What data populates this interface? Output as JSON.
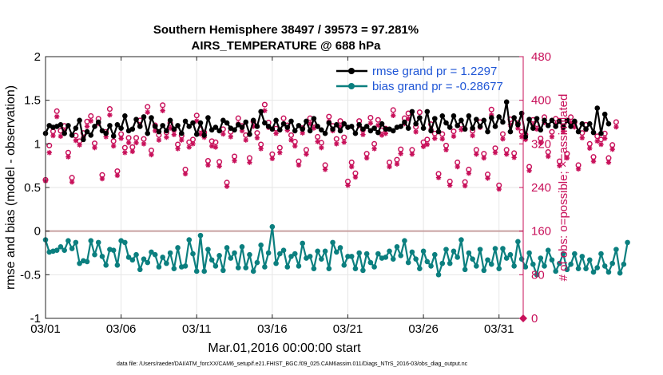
{
  "chart_data": {
    "type": "line",
    "title": [
      "Southern Hemisphere 38497 / 39573 = 97.281%",
      "AIRS_TEMPERATURE @ 688 hPa"
    ],
    "xlabel": "Mar.01,2016 00:00:00 start",
    "ylabel": "rmse and bias (model - observation)",
    "ylabel_right": "# of obs: o=possible; ×=assimilated",
    "footer": "data file: /Users/raeder/DAI/ATM_forcXX/CAM6_setup/f.e21.FHIST_BGC.f09_025.CAM6assim.011/Diags_NTrS_2016-03/obs_diag_output.nc",
    "xlim": [
      0,
      31.6
    ],
    "ylim": [
      -1,
      2
    ],
    "ylim_right": [
      0,
      480
    ],
    "x_ticks": [
      0,
      5,
      10,
      15,
      20,
      25,
      30
    ],
    "x_tick_labels": [
      "03/01",
      "03/06",
      "03/11",
      "03/16",
      "03/21",
      "03/26",
      "03/31"
    ],
    "y_ticks": [
      -1,
      -0.5,
      0,
      0.5,
      1,
      1.5,
      2
    ],
    "y_tick_labels": [
      "-1",
      "-0.5",
      "0",
      "0.5",
      "1",
      "1.5",
      "2"
    ],
    "y_ticks_right": [
      0,
      80,
      160,
      240,
      320,
      400,
      480
    ],
    "y_tick_labels_right": [
      "0",
      "80",
      "160",
      "240",
      "320",
      "400",
      "480"
    ],
    "legend": [
      "rmse grand pr = 1.2297",
      "bias grand pr = -0.28677"
    ],
    "legend_position": "top-right",
    "colors": {
      "rmse": "#000000",
      "bias": "#0b7f7f",
      "obs": "#c8105a",
      "zero_line": "#c8a0a0",
      "grid": "#e6e6e6"
    },
    "x_step_days": 0.25,
    "series": [
      {
        "name": "rmse",
        "axis": "left",
        "values": [
          1.12,
          1.21,
          1.19,
          1.2,
          1.22,
          1.12,
          1.21,
          1.1,
          1.18,
          1.27,
          1.05,
          1.14,
          1.1,
          1.2,
          1.25,
          1.15,
          1.12,
          1.21,
          1.09,
          1.22,
          1.18,
          1.32,
          1.15,
          1.17,
          1.28,
          1.2,
          1.31,
          1.12,
          1.3,
          1.2,
          1.14,
          1.21,
          1.15,
          1.27,
          1.17,
          1.21,
          1.12,
          1.26,
          1.2,
          1.24,
          1.11,
          1.24,
          1.1,
          1.3,
          1.16,
          1.19,
          1.15,
          1.27,
          1.24,
          1.18,
          1.16,
          1.22,
          1.19,
          1.25,
          1.11,
          1.27,
          1.2,
          1.37,
          1.24,
          1.2,
          1.17,
          1.27,
          1.16,
          1.23,
          1.19,
          1.26,
          1.15,
          1.21,
          1.17,
          1.26,
          1.15,
          1.29,
          1.2,
          1.16,
          1.12,
          1.24,
          1.17,
          1.22,
          1.15,
          1.23,
          1.19,
          1.2,
          1.12,
          1.22,
          1.17,
          1.2,
          1.15,
          1.18,
          1.13,
          1.23,
          1.17,
          1.17,
          1.15,
          1.19,
          1.2,
          1.25,
          1.18,
          1.37,
          1.23,
          1.3,
          1.18,
          1.37,
          1.15,
          1.29,
          1.14,
          1.32,
          1.24,
          1.19,
          1.32,
          1.21,
          1.27,
          1.17,
          1.32,
          1.18,
          1.28,
          1.2,
          1.27,
          1.14,
          1.3,
          1.2,
          1.31,
          1.25,
          1.48,
          1.14,
          1.3,
          1.22,
          1.35,
          1.08,
          1.28,
          1.18,
          1.29,
          1.16,
          1.27,
          1.21,
          1.27,
          1.2,
          1.26,
          1.19,
          1.27,
          1.2,
          1.26,
          1.14,
          1.23,
          1.17,
          1.23,
          1.13,
          1.41,
          1.12,
          1.34,
          1.23
        ]
      },
      {
        "name": "bias",
        "axis": "left",
        "values": [
          -0.1,
          -0.24,
          -0.23,
          -0.22,
          -0.18,
          -0.22,
          -0.11,
          -0.2,
          -0.13,
          -0.37,
          -0.34,
          -0.35,
          -0.11,
          -0.27,
          -0.13,
          -0.29,
          -0.39,
          -0.21,
          -0.22,
          -0.39,
          -0.11,
          -0.13,
          -0.3,
          -0.33,
          -0.27,
          -0.44,
          -0.32,
          -0.36,
          -0.24,
          -0.27,
          -0.41,
          -0.3,
          -0.37,
          -0.25,
          -0.43,
          -0.19,
          -0.41,
          -0.4,
          -0.1,
          -0.26,
          -0.46,
          -0.05,
          -0.46,
          -0.21,
          -0.33,
          -0.4,
          -0.28,
          -0.45,
          -0.19,
          -0.31,
          -0.25,
          -0.42,
          -0.18,
          -0.42,
          -0.27,
          -0.46,
          -0.36,
          -0.16,
          -0.41,
          -0.25,
          0.05,
          -0.37,
          -0.26,
          -0.22,
          -0.41,
          -0.29,
          -0.26,
          -0.4,
          -0.14,
          -0.31,
          -0.29,
          -0.43,
          -0.23,
          -0.32,
          -0.23,
          -0.43,
          -0.13,
          -0.24,
          -0.19,
          -0.39,
          -0.29,
          -0.29,
          -0.43,
          -0.25,
          -0.45,
          -0.26,
          -0.36,
          -0.41,
          -0.26,
          -0.31,
          -0.3,
          -0.23,
          -0.32,
          -0.18,
          -0.28,
          -0.11,
          -0.36,
          -0.24,
          -0.32,
          -0.43,
          -0.23,
          -0.35,
          -0.4,
          -0.27,
          -0.5,
          -0.37,
          -0.21,
          -0.37,
          -0.23,
          -0.3,
          -0.1,
          -0.44,
          -0.25,
          -0.32,
          -0.4,
          -0.21,
          -0.45,
          -0.33,
          -0.38,
          -0.2,
          -0.43,
          -0.2,
          -0.31,
          -0.27,
          -0.4,
          -0.12,
          -0.32,
          -0.41,
          -0.25,
          -0.38,
          -0.5,
          -0.31,
          -0.4,
          -0.22,
          -0.33,
          -0.46,
          -0.37,
          -0.26,
          -0.44,
          -0.38,
          -0.26,
          -0.43,
          -0.29,
          -0.43,
          -0.33,
          -0.47,
          -0.42,
          -0.26,
          -0.4,
          -0.47,
          -0.37,
          -0.21,
          -0.48,
          -0.38,
          -0.13
        ]
      },
      {
        "name": "obs_possible",
        "axis": "right",
        "values": [
          254,
          317,
          343,
          380,
          344,
          353,
          304,
          258,
          335,
          325,
          340,
          361,
          371,
          321,
          366,
          263,
          342,
          384,
          325,
          270,
          338,
          313,
          331,
          314,
          331,
          363,
          329,
          388,
          308,
          354,
          336,
          391,
          341,
          358,
          346,
          319,
          335,
          273,
          323,
          328,
          372,
          347,
          341,
          289,
          325,
          323,
          287,
          347,
          249,
          342,
          297,
          367,
          353,
          336,
          294,
          361,
          340,
          319,
          392,
          359,
          301,
          348,
          313,
          367,
          354,
          336,
          324,
          288,
          349,
          309,
          367,
          358,
          333,
          322,
          281,
          370,
          353,
          329,
          362,
          332,
          251,
          286,
          266,
          362,
          346,
          302,
          368,
          320,
          364,
          345,
          348,
          286,
          382,
          291,
          310,
          367,
          376,
          309,
          351,
          378,
          323,
          328,
          356,
          339,
          265,
          338,
          317,
          251,
          343,
          286,
          355,
          250,
          273,
          344,
          309,
          360,
          302,
          264,
          383,
          312,
          244,
          338,
          309,
          365,
          303,
          358,
          342,
          337,
          278,
          364,
          356,
          330,
          369,
          305,
          342,
          366,
          288,
          352,
          302,
          369,
          360,
          281,
          340,
          355,
          320,
          296,
          334,
          328,
          339,
          294,
          318,
          360
        ]
      },
      {
        "name": "obs_assimilated",
        "axis": "right",
        "values": [
          252,
          304,
          335,
          370,
          334,
          344,
          296,
          250,
          326,
          318,
          332,
          352,
          362,
          313,
          357,
          256,
          333,
          373,
          316,
          262,
          330,
          304,
          322,
          306,
          322,
          354,
          320,
          378,
          300,
          344,
          327,
          381,
          332,
          349,
          337,
          311,
          327,
          265,
          314,
          320,
          362,
          338,
          332,
          281,
          316,
          314,
          279,
          338,
          242,
          333,
          289,
          357,
          344,
          327,
          286,
          352,
          331,
          311,
          381,
          350,
          293,
          339,
          304,
          357,
          345,
          327,
          316,
          281,
          340,
          301,
          357,
          349,
          324,
          313,
          273,
          361,
          344,
          320,
          352,
          323,
          244,
          278,
          259,
          353,
          337,
          294,
          358,
          311,
          354,
          336,
          339,
          278,
          372,
          283,
          302,
          357,
          366,
          301,
          342,
          368,
          315,
          319,
          347,
          330,
          258,
          329,
          309,
          244,
          334,
          278,
          346,
          243,
          266,
          335,
          301,
          350,
          294,
          257,
          373,
          304,
          237,
          329,
          301,
          355,
          295,
          349,
          333,
          328,
          271,
          355,
          347,
          322,
          359,
          297,
          333,
          356,
          280,
          343,
          294,
          359,
          351,
          274,
          331,
          346,
          312,
          288,
          325,
          319,
          330,
          286,
          310,
          351
        ]
      }
    ]
  }
}
